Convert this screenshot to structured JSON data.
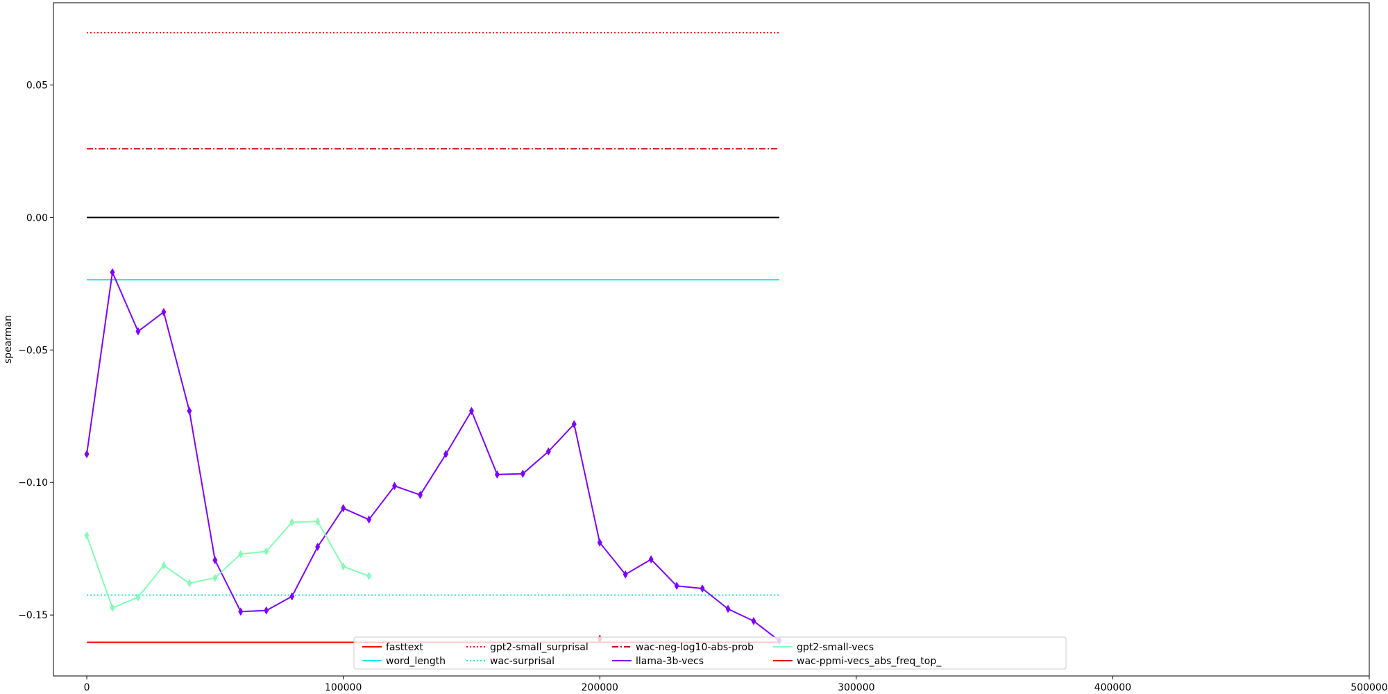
{
  "chart_data": {
    "type": "line",
    "xlabel": "",
    "ylabel": "spearman",
    "xlim": [
      -13000,
      500000
    ],
    "ylim": [
      -0.173,
      0.081
    ],
    "xticks": [
      0,
      100000,
      200000,
      300000,
      400000,
      500000
    ],
    "xtick_labels": [
      "0",
      "100000",
      "200000",
      "300000",
      "400000",
      "500000"
    ],
    "yticks": [
      -0.15,
      -0.1,
      -0.05,
      0.0,
      0.05
    ],
    "ytick_labels": [
      "−0.15",
      "−0.10",
      "−0.05",
      "0.00",
      "0.05"
    ],
    "grid": false,
    "legend_position": "bottom-center",
    "legend_columns": 5,
    "legend": [
      {
        "label": "fasttext",
        "color": "#ff0000",
        "dash": "solid",
        "marker": false
      },
      {
        "label": "word_length",
        "color": "#1ee6e6",
        "dash": "solid",
        "marker": false
      },
      {
        "label": "gpt2-small_surprisal",
        "color": "#ff0000",
        "dash": "dotted",
        "marker": false
      },
      {
        "label": "wac-surprisal",
        "color": "#1ee6e6",
        "dash": "dotted",
        "marker": false
      },
      {
        "label": "wac-neg-log10-abs-prob",
        "color": "#cc0000",
        "dash": "dashdot",
        "marker": false
      },
      {
        "label": "llama-3b-vecs",
        "color": "#7f00ff",
        "dash": "solid",
        "marker": false
      },
      {
        "label": "gpt2-small-vecs",
        "color": "#80ffb4",
        "dash": "solid",
        "marker": false
      },
      {
        "label": "wac-ppmi-vecs_abs_freq_top_",
        "color": "#e00000",
        "dash": "solid",
        "marker": false
      }
    ],
    "hlines": [
      {
        "name": "gpt2-small_surprisal",
        "y": 0.0697,
        "x_range": [
          0,
          270000
        ],
        "color": "#ff0000",
        "dash": "dotted"
      },
      {
        "name": "wac-neg-log10-abs-prob",
        "y": 0.0259,
        "x_range": [
          0,
          270000
        ],
        "color": "#cc0000",
        "dash": "dashdot"
      },
      {
        "name": "zero-reference",
        "y": 0.0,
        "x_range": [
          0,
          270000
        ],
        "color": "#000000",
        "dash": "solid"
      },
      {
        "name": "word_length",
        "y": -0.0235,
        "x_range": [
          0,
          270000
        ],
        "color": "#1ee6e6",
        "dash": "solid"
      },
      {
        "name": "wac-surprisal",
        "y": -0.1425,
        "x_range": [
          0,
          270000
        ],
        "color": "#1ee6e6",
        "dash": "dotted"
      },
      {
        "name": "fasttext",
        "y": -0.1603,
        "x_range": [
          0,
          270000
        ],
        "color": "#ff0000",
        "dash": "solid"
      }
    ],
    "series": [
      {
        "name": "llama-3b-vecs",
        "color": "#7f00ff",
        "marker": "diamond",
        "x": [
          0,
          10000,
          20000,
          30000,
          40000,
          50000,
          60000,
          70000,
          80000,
          90000,
          100000,
          110000,
          120000,
          130000,
          140000,
          150000,
          160000,
          170000,
          180000,
          190000,
          200000,
          210000,
          220000,
          230000,
          240000,
          250000,
          260000,
          270000
        ],
        "y": [
          -0.0893,
          -0.0207,
          -0.043,
          -0.0357,
          -0.073,
          -0.1293,
          -0.1487,
          -0.1483,
          -0.143,
          -0.1243,
          -0.1097,
          -0.114,
          -0.1013,
          -0.1047,
          -0.0893,
          -0.073,
          -0.097,
          -0.0967,
          -0.0883,
          -0.078,
          -0.1227,
          -0.1347,
          -0.129,
          -0.139,
          -0.14,
          -0.1477,
          -0.1523,
          -0.1597
        ]
      },
      {
        "name": "gpt2-small-vecs",
        "color": "#80ffb4",
        "marker": "diamond",
        "x": [
          0,
          10000,
          20000,
          30000,
          40000,
          50000,
          60000,
          70000,
          80000,
          90000,
          100000,
          110000
        ],
        "y": [
          -0.12,
          -0.1473,
          -0.1433,
          -0.1313,
          -0.138,
          -0.136,
          -0.127,
          -0.126,
          -0.115,
          -0.1147,
          -0.1317,
          -0.1353
        ]
      },
      {
        "name": "wac-ppmi-vecs_abs_freq_top_",
        "color": "#e00000",
        "marker": "diamond",
        "x": [
          200000
        ],
        "y": [
          -0.159
        ]
      }
    ]
  }
}
